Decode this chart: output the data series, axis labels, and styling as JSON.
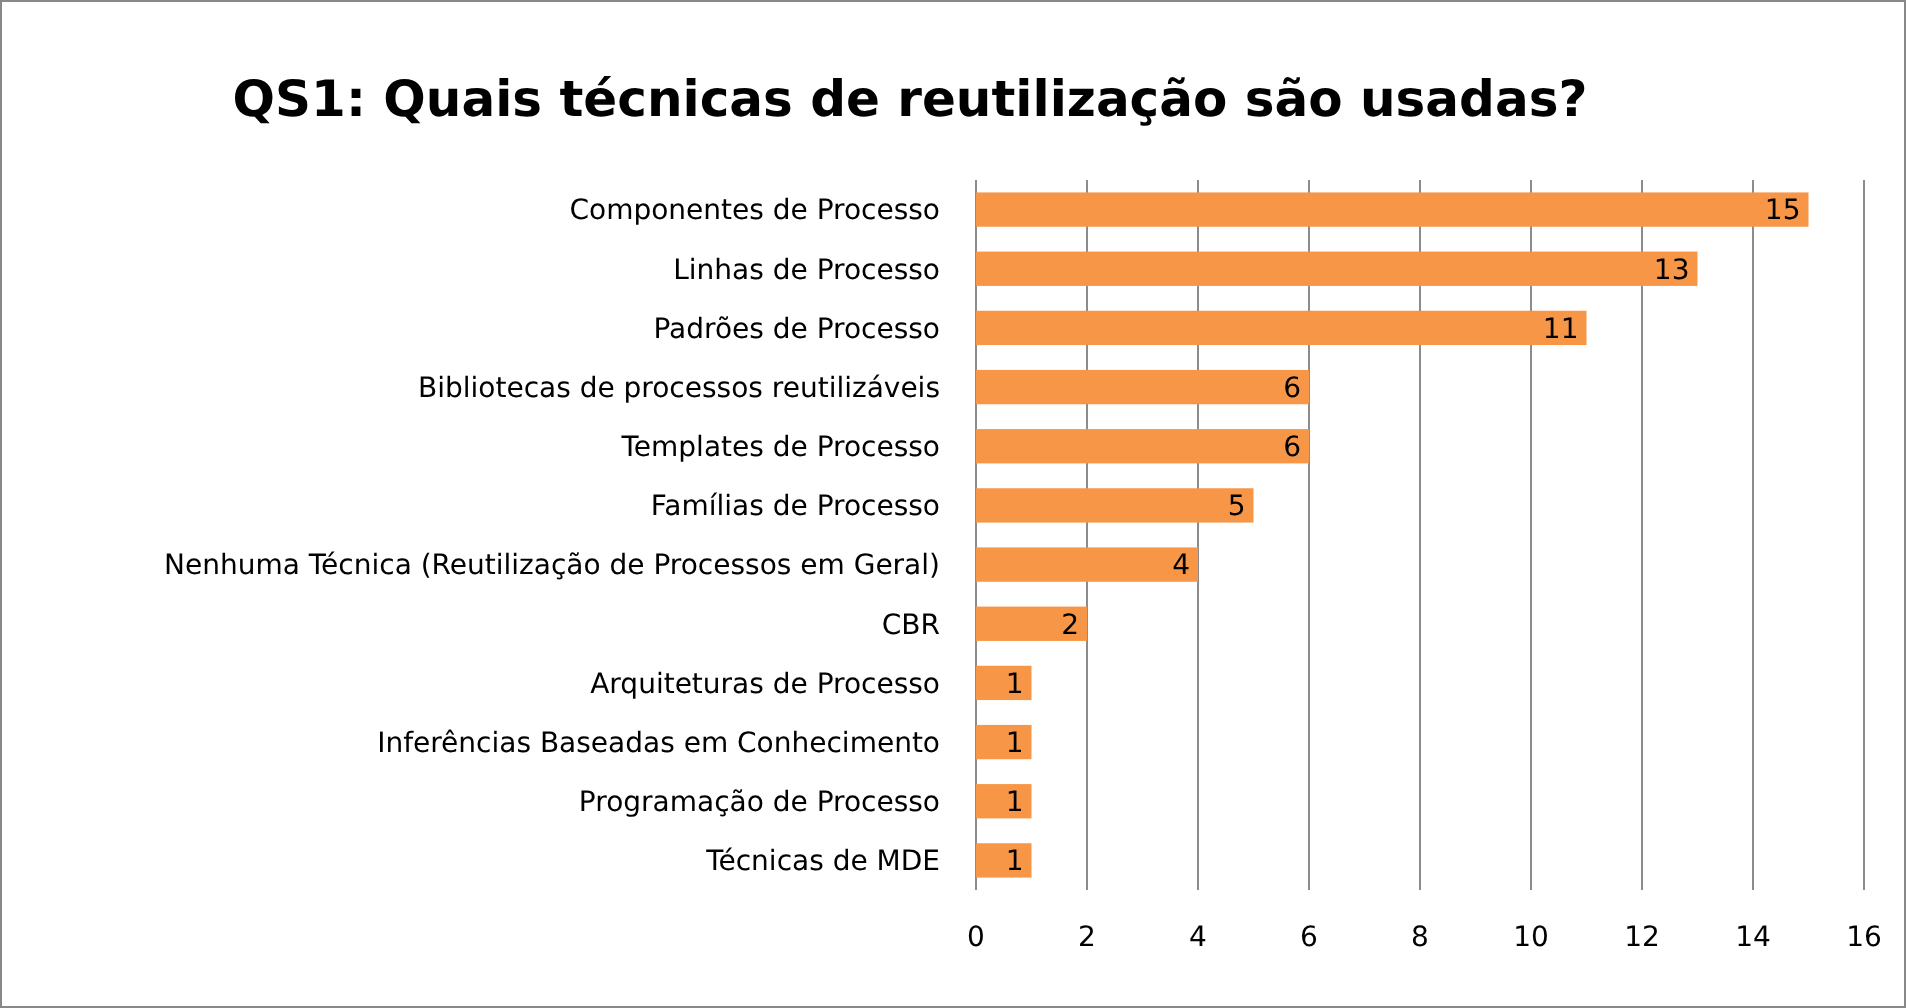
{
  "chart_data": {
    "type": "bar",
    "orientation": "horizontal",
    "title": "QS1: Quais técnicas de reutilização são usadas?",
    "categories": [
      "Componentes de Processo",
      "Linhas de Processo",
      "Padrões de Processo",
      "Bibliotecas de processos reutilizáveis",
      "Templates de Processo",
      "Famílias de Processo",
      "Nenhuma Técnica (Reutilização de Processos em Geral)",
      "CBR",
      "Arquiteturas de Processo",
      "Inferências Baseadas em Conhecimento",
      "Programação de Processo",
      "Técnicas de MDE"
    ],
    "values": [
      15,
      13,
      11,
      6,
      6,
      5,
      4,
      2,
      1,
      1,
      1,
      1
    ],
    "color": "#f79646",
    "xlim": [
      0,
      16
    ],
    "xticks": [
      0,
      2,
      4,
      6,
      8,
      10,
      12,
      14,
      16
    ],
    "grid": "x",
    "data_labels": true
  }
}
